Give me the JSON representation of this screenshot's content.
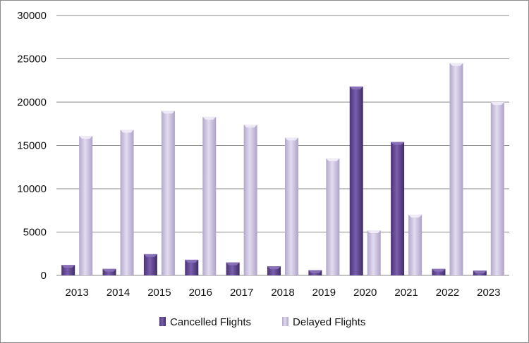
{
  "chart_data": {
    "type": "bar",
    "title": "",
    "xlabel": "",
    "ylabel": "",
    "categories": [
      "2013",
      "2014",
      "2015",
      "2016",
      "2017",
      "2018",
      "2019",
      "2020",
      "2021",
      "2022",
      "2023"
    ],
    "series": [
      {
        "name": "Cancelled Flights",
        "color": "#6a4f9b",
        "values": [
          1200,
          750,
          2450,
          1800,
          1500,
          1050,
          600,
          21800,
          15400,
          750,
          550
        ]
      },
      {
        "name": "Delayed Flights",
        "color": "#cfc6e0",
        "values": [
          16100,
          16800,
          19000,
          18300,
          17400,
          15900,
          13500,
          5200,
          7000,
          24500,
          20000
        ]
      }
    ],
    "ylim": [
      0,
      30000
    ],
    "yticks": [
      "0",
      "5000",
      "10000",
      "15000",
      "20000",
      "25000",
      "30000"
    ],
    "grid": true,
    "legend": "bottom"
  }
}
